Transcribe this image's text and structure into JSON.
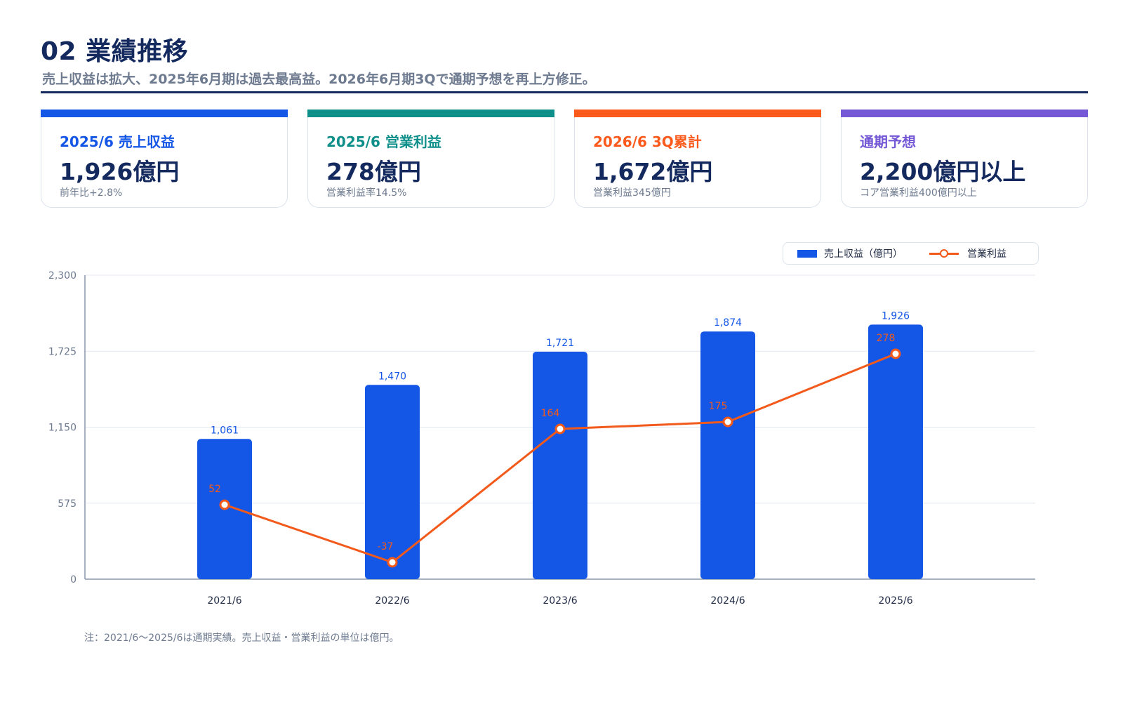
{
  "header": {
    "title": "02 業績推移",
    "subtitle": "売上収益は拡大、2025年6月期は過去最高益。2026年6月期3Qで通期予想を再上方修正。"
  },
  "cards": [
    {
      "label": "2025/6 売上収益",
      "value": "1,926億円",
      "note": "前年比+2.8%",
      "color": "#1456e6"
    },
    {
      "label": "2025/6 営業利益",
      "value": "278億円",
      "note": "営業利益率14.5%",
      "color": "#0e8f8a"
    },
    {
      "label": "2026/6 3Q累計",
      "value": "1,672億円",
      "note": "営業利益345億円",
      "color": "#fb5a1c"
    },
    {
      "label": "通期予想",
      "value": "2,200億円以上",
      "note": "コア営業利益400億円以上",
      "color": "#7558d6"
    }
  ],
  "legend": {
    "bar_label": "売上収益（億円）",
    "line_label": "営業利益"
  },
  "chart_data": {
    "type": "bar",
    "categories": [
      "2021/6",
      "2022/6",
      "2023/6",
      "2024/6",
      "2025/6"
    ],
    "series": [
      {
        "name": "売上収益（億円）",
        "type": "bar",
        "values": [
          1061,
          1470,
          1721,
          1874,
          1926
        ],
        "labels": [
          "1,061",
          "1,470",
          "1,721",
          "1,874",
          "1,926"
        ],
        "color": "#1456e6"
      },
      {
        "name": "営業利益",
        "type": "line",
        "values": [
          52,
          -37,
          164,
          175,
          278
        ],
        "labels": [
          "52",
          "-37",
          "164",
          "175",
          "278"
        ],
        "color": "#f25a1c"
      }
    ],
    "yticks": [
      0,
      575,
      1150,
      1725,
      2300
    ],
    "ytick_labels": [
      "0",
      "575",
      "1,150",
      "1,725",
      "2,300"
    ],
    "ylim": [
      0,
      2300
    ],
    "grid": true,
    "legend_position": "top-right"
  },
  "footnote": "注：2021/6〜2025/6は通期実績。売上収益・営業利益の単位は億円。"
}
